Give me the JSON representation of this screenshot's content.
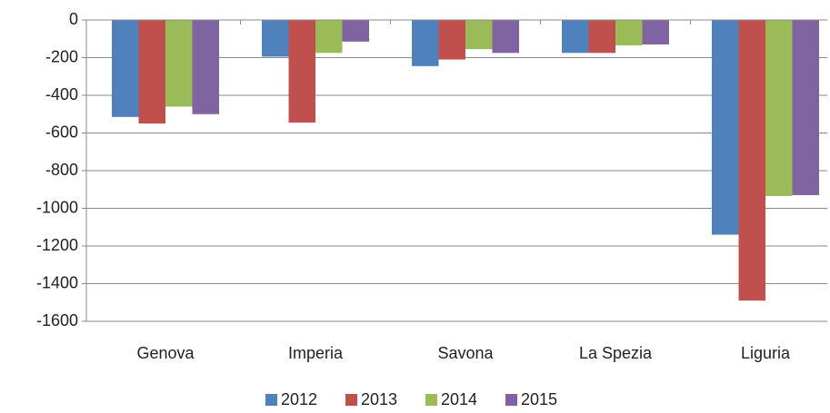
{
  "chart_data": {
    "type": "bar",
    "categories": [
      "Genova",
      "Imperia",
      "Savona",
      "La Spezia",
      "Liguria"
    ],
    "series": [
      {
        "name": "2012",
        "color": "#4f81bd",
        "values": [
          -515,
          -195,
          -245,
          -175,
          -1140
        ]
      },
      {
        "name": "2013",
        "color": "#c0504d",
        "values": [
          -550,
          -545,
          -210,
          -175,
          -1490
        ]
      },
      {
        "name": "2014",
        "color": "#9bbb59",
        "values": [
          -460,
          -175,
          -155,
          -135,
          -935
        ]
      },
      {
        "name": "2015",
        "color": "#8064a2",
        "values": [
          -500,
          -115,
          -175,
          -130,
          -930
        ]
      }
    ],
    "ylim": [
      -1600,
      0
    ],
    "yticks": [
      0,
      -200,
      -400,
      -600,
      -800,
      -1000,
      -1200,
      -1400,
      -1600
    ],
    "grid": true,
    "legend": "bottom"
  }
}
